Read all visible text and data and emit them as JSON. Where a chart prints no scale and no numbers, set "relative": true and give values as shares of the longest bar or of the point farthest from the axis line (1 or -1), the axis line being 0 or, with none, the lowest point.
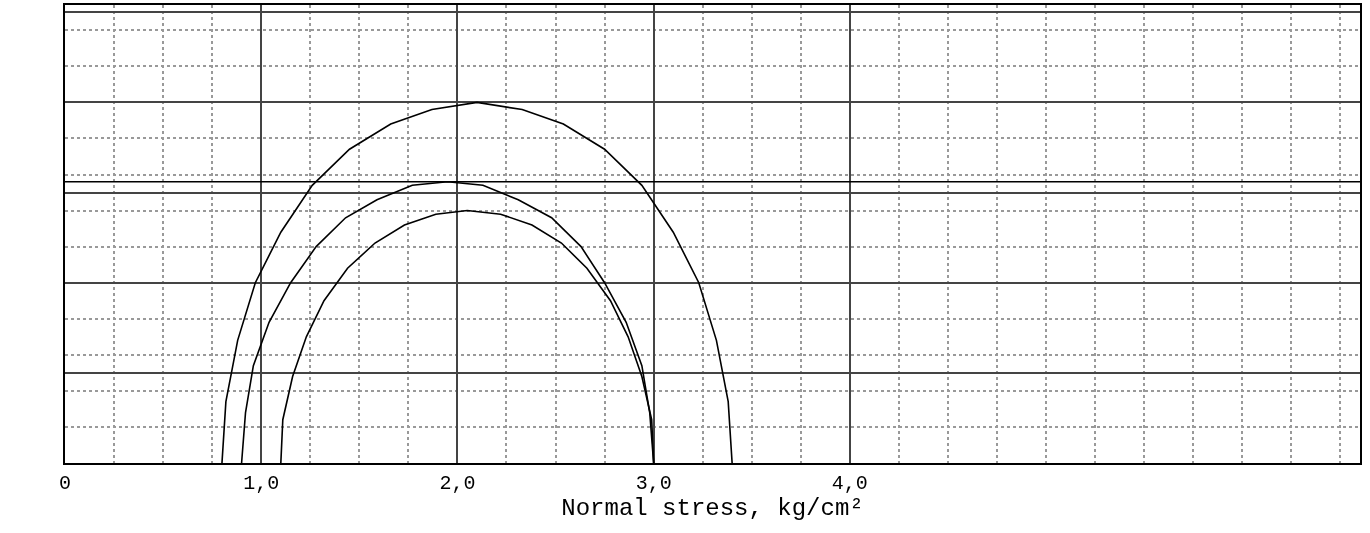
{
  "chart_data": {
    "type": "line",
    "relative": true,
    "xlabel": "Normal stress, kg/cm²",
    "xlim": [
      0,
      6.6
    ],
    "xticks": [
      {
        "value": 0,
        "label": "0"
      },
      {
        "value": 1,
        "label": "1,0"
      },
      {
        "value": 2,
        "label": "2,0"
      },
      {
        "value": 3,
        "label": "3,0"
      },
      {
        "value": 4,
        "label": "4,0"
      }
    ],
    "grid": true,
    "marker": "none",
    "line_style": "solid",
    "ref_lines": [
      {
        "axis": "y",
        "value": 0.78,
        "color": "#000000"
      }
    ],
    "series": [
      {
        "color": "#000000",
        "x": [
          0.8,
          0.82,
          0.88,
          0.97,
          1.1,
          1.26,
          1.45,
          1.66,
          1.87,
          2.1,
          2.33,
          2.54,
          2.75,
          2.94,
          3.1,
          3.23,
          3.32,
          3.38,
          3.4
        ],
        "values": [
          0,
          0.17,
          0.34,
          0.5,
          0.64,
          0.77,
          0.87,
          0.94,
          0.98,
          1,
          0.98,
          0.94,
          0.87,
          0.77,
          0.64,
          0.5,
          0.34,
          0.17,
          0
        ]
      },
      {
        "color": "#000000",
        "x": [
          0.9,
          0.92,
          0.96,
          1.04,
          1.15,
          1.28,
          1.43,
          1.59,
          1.77,
          1.95,
          2.13,
          2.31,
          2.48,
          2.63,
          2.75,
          2.86,
          2.94,
          2.98,
          3.0
        ],
        "values": [
          0,
          0.14,
          0.27,
          0.39,
          0.5,
          0.6,
          0.68,
          0.73,
          0.77,
          0.78,
          0.77,
          0.73,
          0.68,
          0.6,
          0.5,
          0.39,
          0.27,
          0.14,
          0
        ]
      },
      {
        "color": "#000000",
        "x": [
          1.1,
          1.11,
          1.16,
          1.23,
          1.32,
          1.44,
          1.58,
          1.73,
          1.89,
          2.05,
          2.22,
          2.38,
          2.53,
          2.66,
          2.78,
          2.87,
          2.94,
          2.99,
          3.0
        ],
        "values": [
          0,
          0.12,
          0.24,
          0.35,
          0.45,
          0.54,
          0.61,
          0.66,
          0.69,
          0.7,
          0.69,
          0.66,
          0.61,
          0.54,
          0.45,
          0.35,
          0.24,
          0.12,
          0
        ]
      }
    ]
  }
}
